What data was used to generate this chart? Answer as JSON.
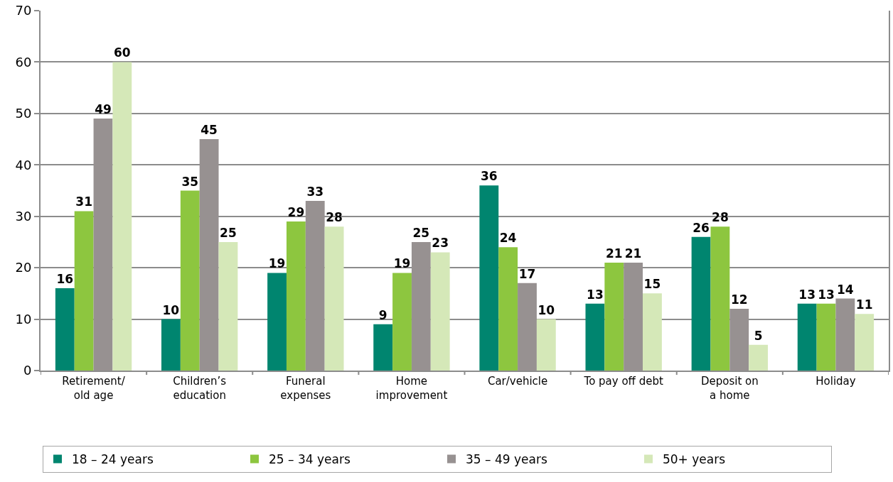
{
  "chart_data": {
    "type": "bar",
    "categories": [
      "Retirement/\nold age",
      "Children’s\neducation",
      "Funeral\nexpenses",
      "Home\nimprovement",
      "Car/vehicle",
      "To pay off debt",
      "Deposit on\na home",
      "Holiday"
    ],
    "series": [
      {
        "name": "18 – 24 years",
        "color": "#00856f",
        "values": [
          16,
          10,
          19,
          9,
          36,
          13,
          26,
          13
        ]
      },
      {
        "name": "25 – 34 years",
        "color": "#8dc63f",
        "values": [
          31,
          35,
          29,
          19,
          24,
          21,
          28,
          13
        ]
      },
      {
        "name": "35 – 49 years",
        "color": "#979191",
        "values": [
          49,
          45,
          33,
          25,
          17,
          21,
          12,
          14
        ]
      },
      {
        "name": "50+ years",
        "color": "#d5e8b8",
        "values": [
          60,
          25,
          28,
          23,
          10,
          15,
          5,
          11
        ]
      }
    ],
    "ylim": [
      0,
      70
    ],
    "yticks": [
      0,
      10,
      20,
      30,
      40,
      50,
      60,
      70
    ],
    "grid": "y",
    "legend": "bottom",
    "data_labels": true
  }
}
